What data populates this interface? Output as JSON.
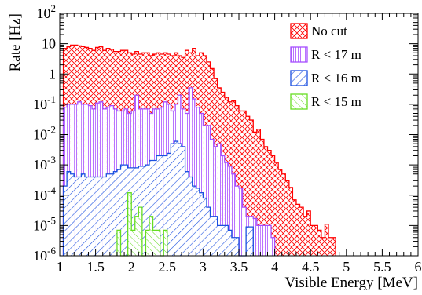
{
  "chart_data": {
    "type": "histogram",
    "title": "",
    "xlabel": "Visible Energy [MeV]",
    "ylabel": "Rate [Hz]",
    "log_y": true,
    "grid": false,
    "legend_placement": "top-right",
    "xlim": [
      1,
      6
    ],
    "ylim": [
      1e-06,
      100
    ],
    "bin_width": 0.05,
    "x_ticks": [
      "1",
      "1.5",
      "2",
      "2.5",
      "3",
      "3.5",
      "4",
      "4.5",
      "5",
      "5.5",
      "6"
    ],
    "y_ticks": [
      {
        "base": "10",
        "exp": "-6"
      },
      {
        "base": "10",
        "exp": "-5"
      },
      {
        "base": "10",
        "exp": "-4"
      },
      {
        "base": "10",
        "exp": "-3"
      },
      {
        "base": "10",
        "exp": "-2"
      },
      {
        "base": "10",
        "exp": "-1"
      },
      {
        "base": "1",
        "exp": ""
      },
      {
        "base": "10",
        "exp": ""
      },
      {
        "base": "10",
        "exp": "2"
      }
    ],
    "series": [
      {
        "name": "No cut",
        "color": "#ff0000",
        "pattern": "crosshatch",
        "x_start": 1.05,
        "values": [
          7,
          8,
          9,
          9,
          8.5,
          8,
          7.5,
          7,
          6,
          7.5,
          8,
          6,
          7,
          6.5,
          5.5,
          5.5,
          6,
          6,
          5,
          4.5,
          5.5,
          4.5,
          5,
          5,
          4,
          4.5,
          5,
          4.5,
          5,
          4.5,
          4,
          5,
          4,
          3.5,
          6,
          5,
          7,
          4,
          5,
          4,
          2.5,
          1.5,
          0.7,
          0.35,
          0.25,
          0.17,
          0.12,
          0.13,
          0.09,
          0.06,
          0.06,
          0.04,
          0.03,
          0.012,
          0.015,
          0.007,
          0.004,
          0.003,
          0.002,
          0.0012,
          0.0007,
          0.0005,
          0.0003,
          0.00018,
          7e-05,
          5e-05,
          4e-05,
          2e-05,
          3e-05,
          1e-05,
          1e-05,
          7e-06,
          4e-06,
          1.1e-05,
          4e-06,
          4e-06
        ]
      },
      {
        "name": "R < 17 m",
        "color": "#a64dff",
        "pattern": "vertical",
        "x_start": 1.05,
        "values": [
          0.08,
          0.1,
          0.1,
          0.1,
          0.12,
          0.1,
          0.1,
          0.09,
          0.07,
          0.11,
          0.12,
          0.07,
          0.08,
          0.09,
          0.07,
          0.06,
          0.06,
          0.07,
          0.05,
          0.06,
          0.2,
          0.07,
          0.07,
          0.07,
          0.05,
          0.07,
          0.07,
          0.08,
          0.12,
          0.1,
          0.06,
          0.1,
          0.2,
          0.07,
          0.05,
          0.35,
          0.15,
          0.08,
          0.05,
          0.02,
          0.02,
          0.007,
          0.004,
          0.005,
          0.002,
          0.0012,
          0.0009,
          0.0005,
          0.0002,
          0.00017,
          4e-05,
          2e-05,
          2e-05,
          1.7e-05,
          1e-05,
          1e-05,
          1e-05,
          1e-05,
          4e-06
        ]
      },
      {
        "name": "R < 16 m",
        "color": "#1a4fe0",
        "pattern": "diagonal-left",
        "x_start": 1.05,
        "values": [
          0.0002,
          0.0006,
          0.0005,
          0.0004,
          0.0004,
          0.0005,
          0.0004,
          0.0004,
          0.0004,
          0.0004,
          0.0004,
          0.0004,
          0.0005,
          0.0005,
          0.0006,
          0.0007,
          0.001,
          0.001,
          0.0008,
          0.0008,
          0.0008,
          0.0009,
          0.0009,
          0.001,
          0.0014,
          0.0014,
          0.002,
          0.002,
          0.002,
          0.0024,
          0.005,
          0.006,
          0.005,
          0.004,
          0.0006,
          0.0004,
          0.0002,
          0.00017,
          0.00012,
          8e-05,
          4e-05,
          2e-05,
          2e-05,
          1e-05,
          1e-05,
          1e-05,
          7e-06,
          4e-06,
          4e-06,
          0,
          0,
          9e-06,
          9e-06
        ]
      },
      {
        "name": "R < 15 m",
        "color": "#66dd22",
        "pattern": "diagonal-right",
        "x_start": 1.8,
        "values": [
          7e-06,
          0,
          0,
          0.00012,
          7e-06,
          2e-05,
          4e-05,
          0,
          7e-06,
          2e-05,
          7e-06,
          7e-06,
          0,
          7e-06
        ]
      }
    ]
  }
}
